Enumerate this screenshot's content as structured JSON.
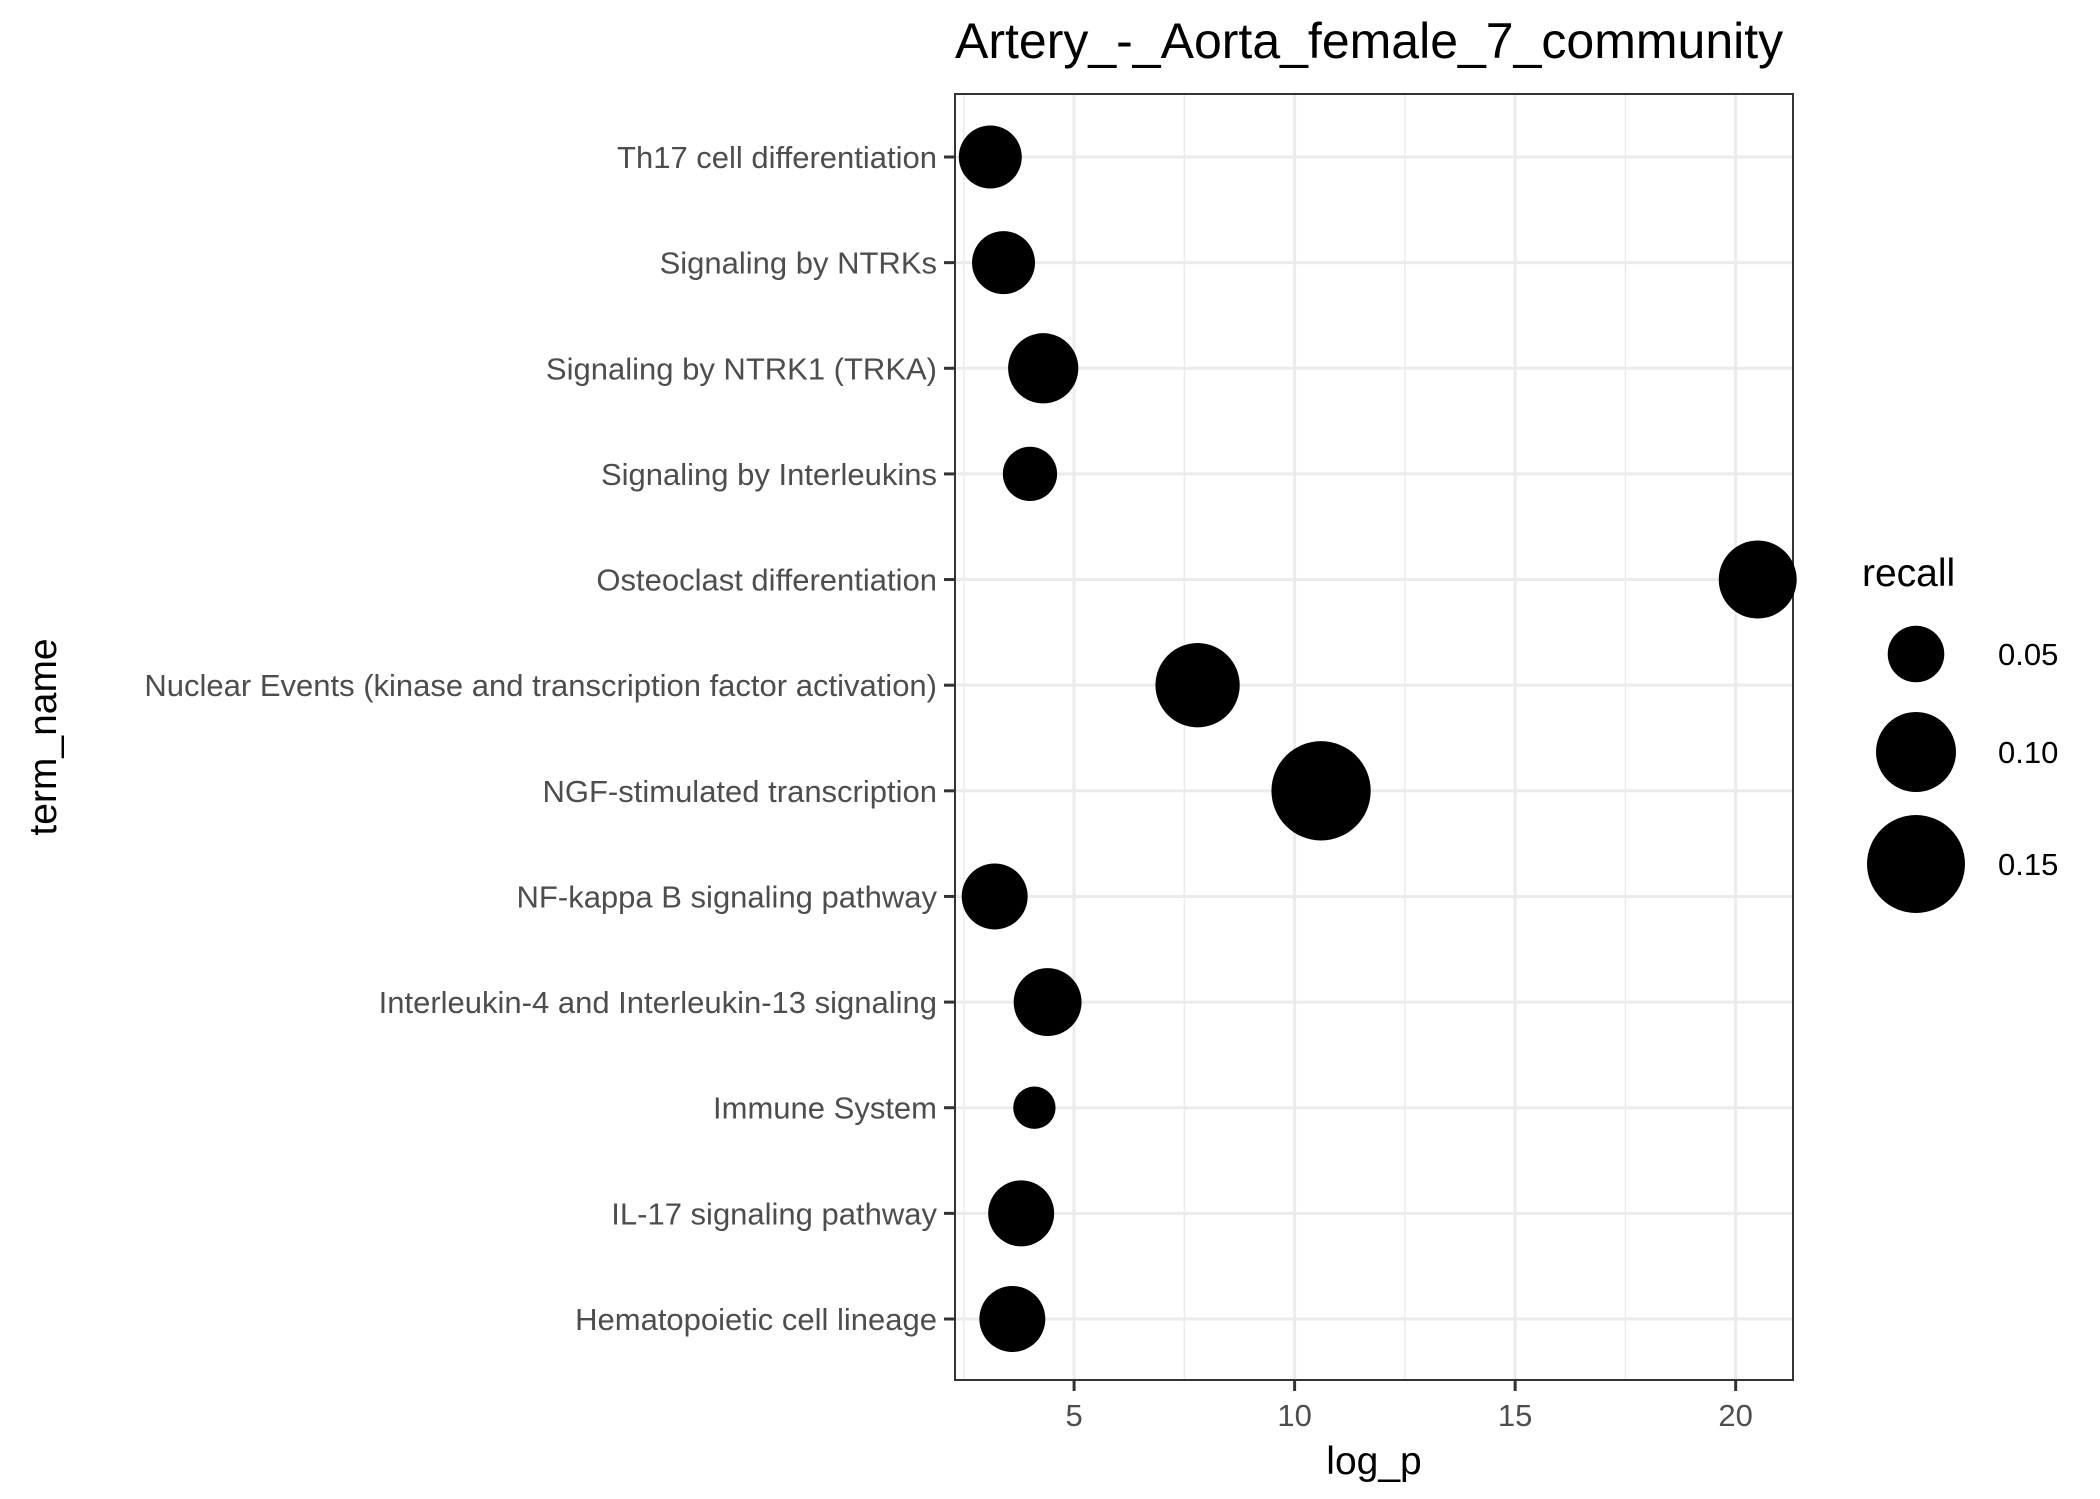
{
  "chart_data": {
    "type": "scatter",
    "title": "Artery_-_Aorta_female_7_community",
    "xlabel": "log_p",
    "ylabel": "term_name",
    "xlim": [
      2.3,
      21.3
    ],
    "x_ticks": [
      5,
      10,
      15,
      20
    ],
    "x_tick_labels": [
      "5",
      "10",
      "15",
      "20"
    ],
    "grid": true,
    "legend_position": "right",
    "size_legend": {
      "title": "recall",
      "values": [
        0.05,
        0.1,
        0.15
      ],
      "labels": [
        "0.05",
        "0.10",
        "0.15"
      ]
    },
    "marker_color": "#000000",
    "categories": [
      "Th17 cell differentiation",
      "Signaling by NTRKs",
      "Signaling by NTRK1 (TRKA)",
      "Signaling by Interleukins",
      "Osteoclast differentiation",
      "Nuclear Events (kinase and transcription factor activation)",
      "NGF-stimulated transcription",
      "NF-kappa B signaling pathway",
      "Interleukin-4 and Interleukin-13 signaling",
      "Immune System",
      "IL-17 signaling pathway",
      "Hematopoietic cell lineage"
    ],
    "points": [
      {
        "term": "Th17 cell differentiation",
        "x": 3.1,
        "recall": 0.062
      },
      {
        "term": "Signaling by NTRKs",
        "x": 3.4,
        "recall": 0.062
      },
      {
        "term": "Signaling by NTRK1 (TRKA)",
        "x": 4.3,
        "recall": 0.077
      },
      {
        "term": "Signaling by Interleukins",
        "x": 4.0,
        "recall": 0.046
      },
      {
        "term": "Osteoclast differentiation",
        "x": 20.5,
        "recall": 0.095
      },
      {
        "term": "Nuclear Events (kinase and transcription factor activation)",
        "x": 7.8,
        "recall": 0.111
      },
      {
        "term": "NGF-stimulated transcription",
        "x": 10.6,
        "recall": 0.154
      },
      {
        "term": "NF-kappa B signaling pathway",
        "x": 3.2,
        "recall": 0.068
      },
      {
        "term": "Interleukin-4 and Interleukin-13 signaling",
        "x": 4.4,
        "recall": 0.072
      },
      {
        "term": "Immune System",
        "x": 4.1,
        "recall": 0.028
      },
      {
        "term": "IL-17 signaling pathway",
        "x": 3.8,
        "recall": 0.068
      },
      {
        "term": "Hematopoietic cell lineage",
        "x": 3.6,
        "recall": 0.068
      }
    ]
  }
}
